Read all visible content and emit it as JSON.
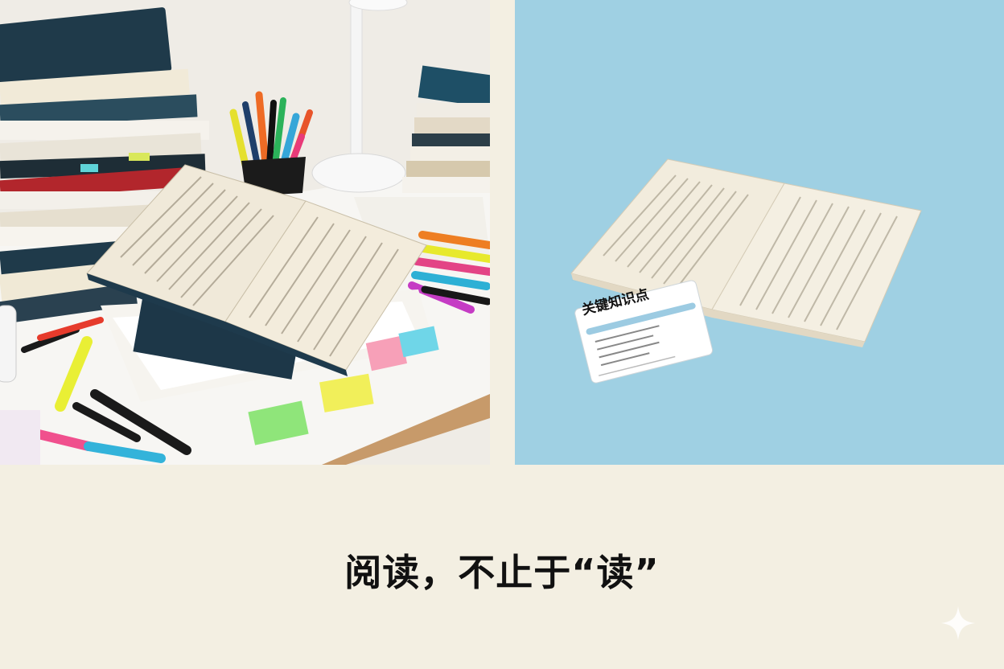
{
  "caption": {
    "text": "阅读，不止于“读”"
  },
  "card": {
    "title": "关键知识点"
  },
  "colors": {
    "background": "#f3efe2",
    "left_panel": "#ece8e0",
    "right_panel": "#9fd0e3",
    "caption_text": "#111111"
  },
  "icons": {
    "corner": "sparkle-icon"
  }
}
